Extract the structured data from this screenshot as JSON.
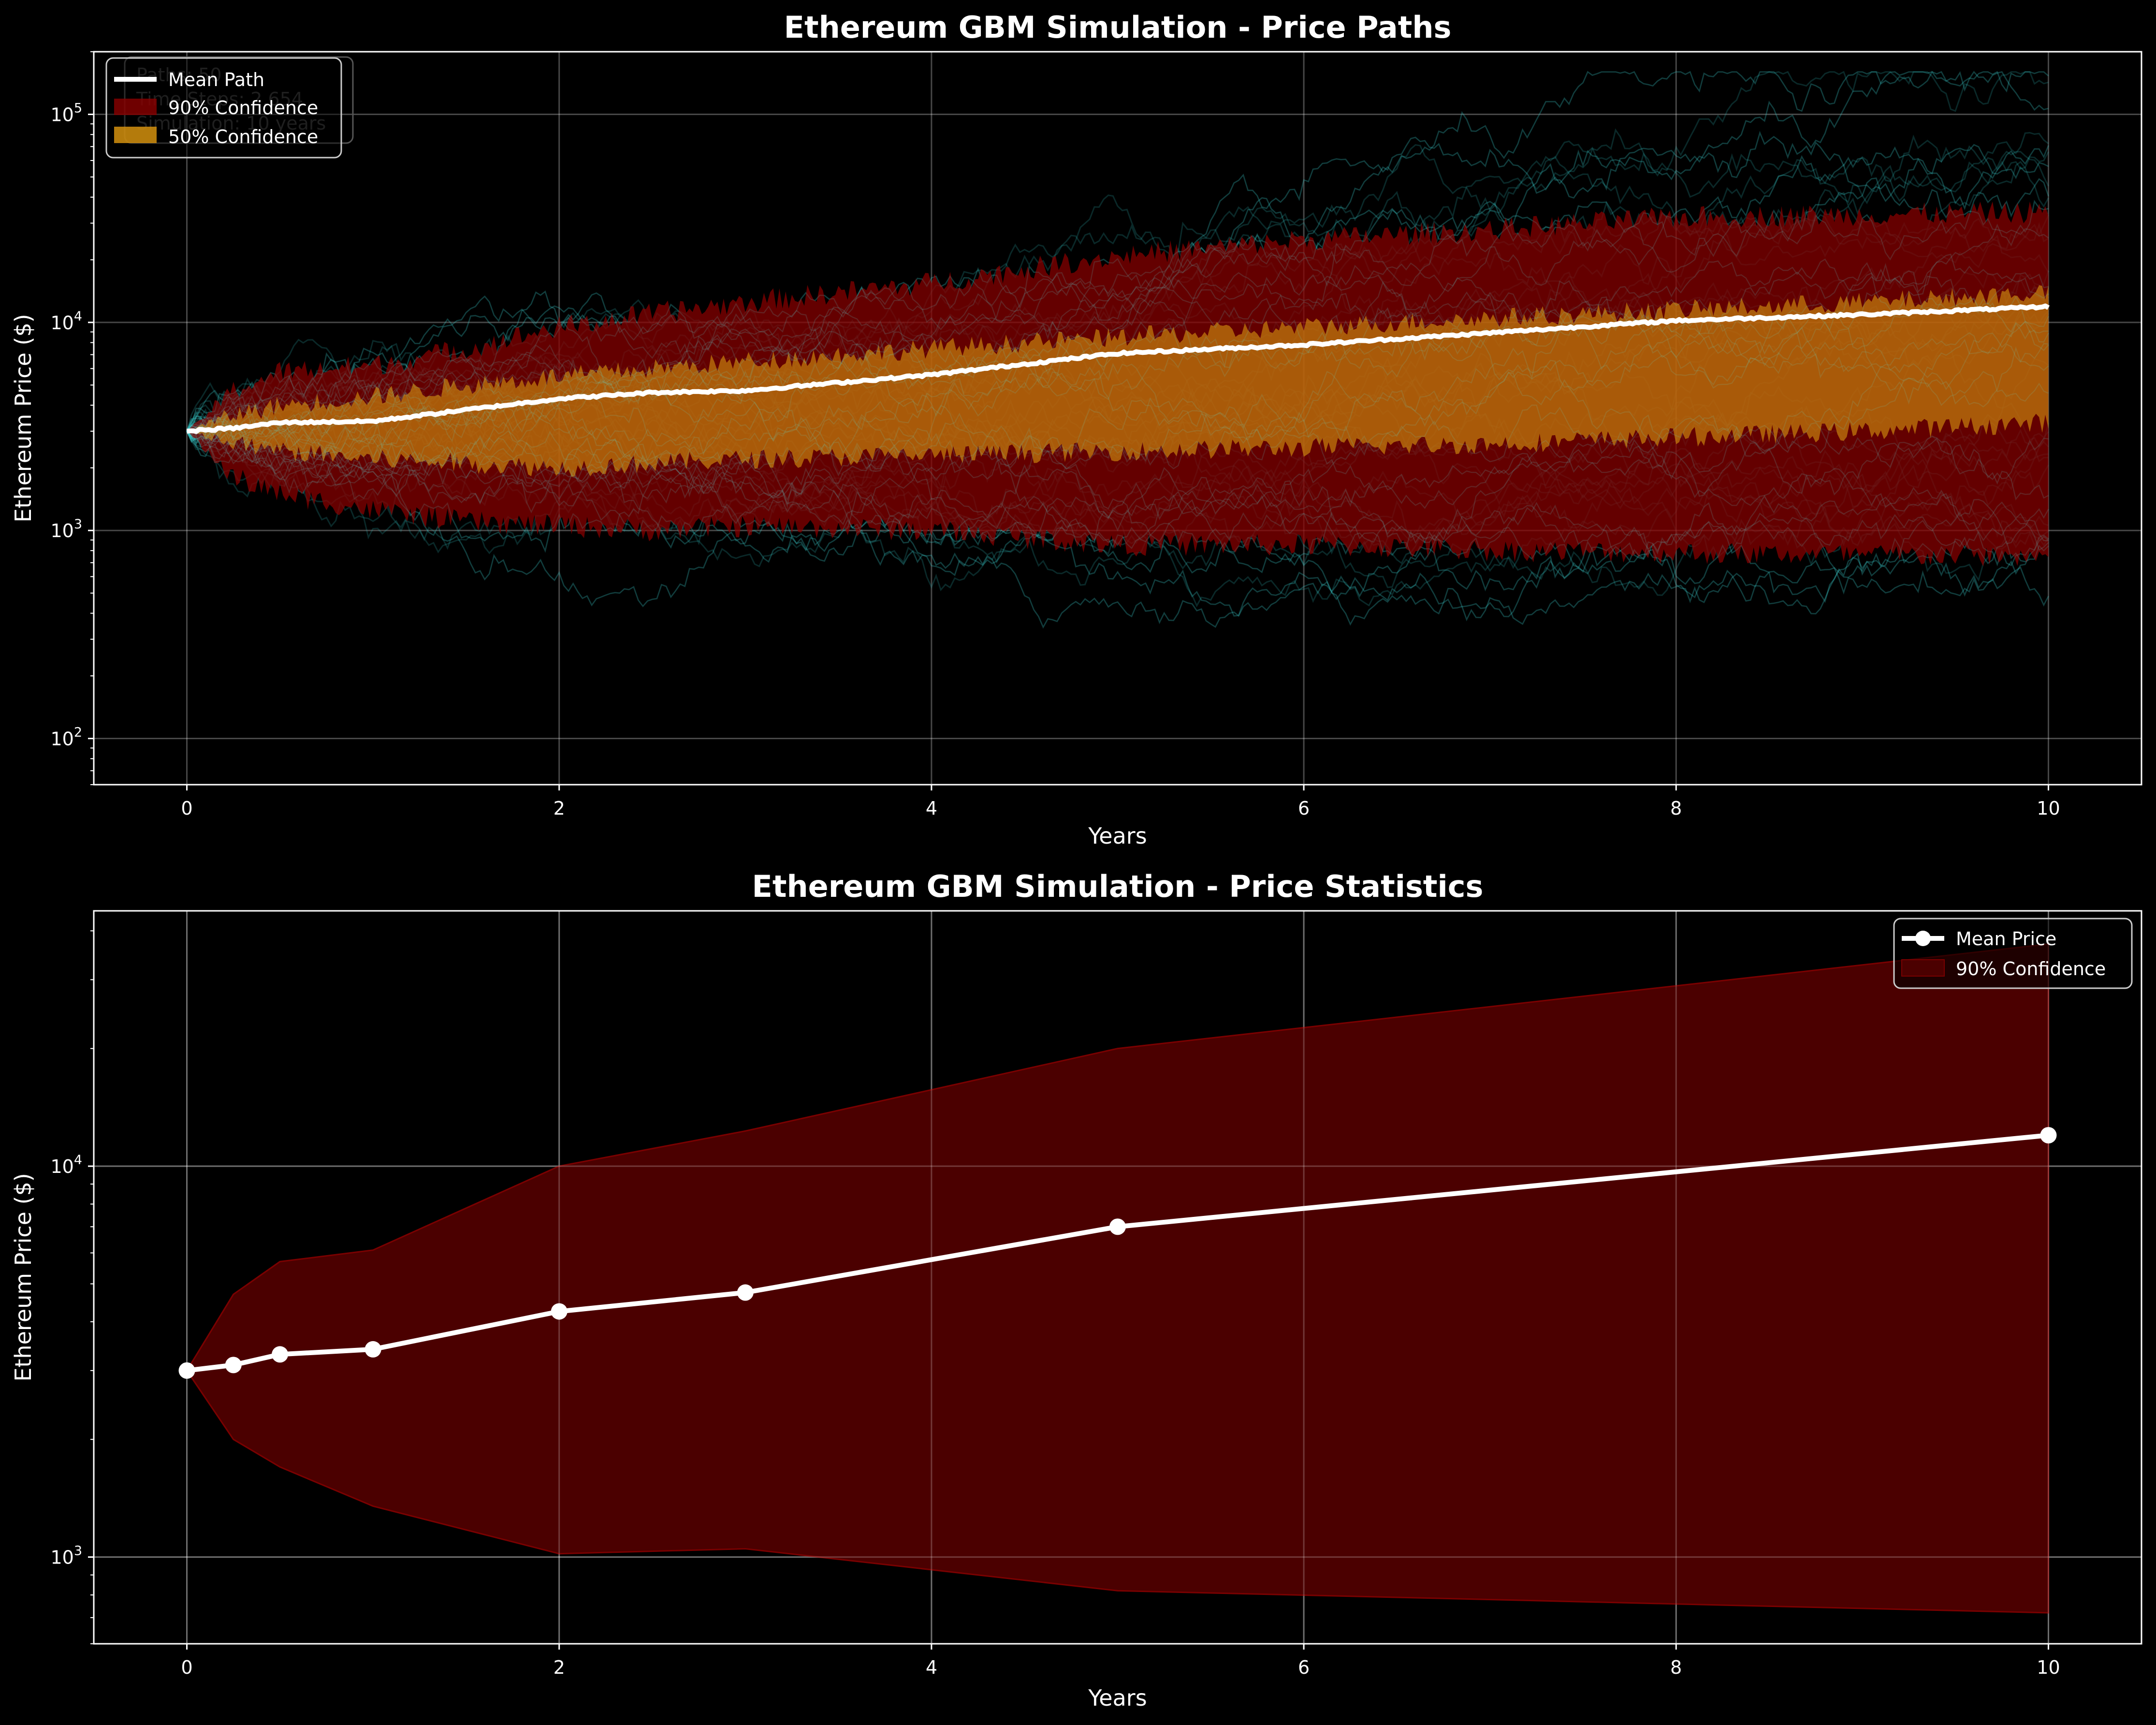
{
  "chart_data": [
    {
      "type": "line",
      "title": "Ethereum GBM Simulation - Price Paths",
      "xlabel": "Years",
      "ylabel": "Ethereum Price ($)",
      "yscale": "log",
      "xlim": [
        -0.5,
        10.5
      ],
      "ylim": [
        60,
        200000
      ],
      "xticks": [
        "0",
        "2",
        "4",
        "6",
        "8",
        "10"
      ],
      "yticks": [
        "10",
        "10",
        "10",
        "10"
      ],
      "ytick_exponents": [
        "2",
        "3",
        "4",
        "5"
      ],
      "grid": true,
      "legend": "top-left",
      "legend_entries": [
        "Mean Path",
        "90% Confidence",
        "50% Confidence"
      ],
      "overlay_text": [
        "Paths: 50",
        "Time Steps: 2,654",
        "Simulation: 10 years"
      ],
      "x": [
        0,
        0.25,
        0.5,
        1,
        1.5,
        2,
        2.5,
        3,
        4,
        5,
        6,
        7,
        8,
        9,
        10
      ],
      "series": [
        {
          "name": "Mean Path",
          "values": [
            3000,
            3100,
            3300,
            3350,
            3800,
            4300,
            4600,
            4700,
            5600,
            7100,
            7800,
            8900,
            10200,
            10900,
            11900
          ]
        },
        {
          "name": "90% Confidence",
          "lower": [
            3000,
            1800,
            1500,
            1250,
            1100,
            1050,
            1000,
            1050,
            1000,
            850,
            850,
            800,
            780,
            760,
            750
          ],
          "upper": [
            3000,
            4700,
            5800,
            6200,
            7500,
            9500,
            11000,
            12500,
            15500,
            21000,
            25000,
            28000,
            32000,
            33000,
            34000
          ]
        },
        {
          "name": "50% Confidence",
          "lower": [
            3000,
            2600,
            2400,
            2200,
            2100,
            2000,
            2100,
            2200,
            2300,
            2400,
            2500,
            2600,
            2800,
            3000,
            3300
          ],
          "upper": [
            3000,
            3600,
            4000,
            4400,
            5000,
            5500,
            6000,
            6500,
            7500,
            8500,
            9500,
            10500,
            11500,
            12500,
            14000
          ]
        }
      ],
      "colors": {
        "mean": "#ffffff",
        "ci90": "#8b0000",
        "ci50": "#d4910e",
        "paths": "#2fb7b7"
      }
    },
    {
      "type": "line",
      "title": "Ethereum GBM Simulation - Price Statistics",
      "xlabel": "Years",
      "ylabel": "Ethereum Price ($)",
      "yscale": "log",
      "xlim": [
        -0.5,
        10.5
      ],
      "ylim": [
        600,
        45000
      ],
      "xticks": [
        "0",
        "2",
        "4",
        "6",
        "8",
        "10"
      ],
      "yticks": [
        "10",
        "10"
      ],
      "ytick_exponents": [
        "3",
        "4"
      ],
      "grid": true,
      "legend": "top-right",
      "legend_entries": [
        "Mean Price",
        "90% Confidence"
      ],
      "x": [
        0,
        0.25,
        0.5,
        1,
        2,
        3,
        5,
        10
      ],
      "series": [
        {
          "name": "Mean Price",
          "values": [
            3000,
            3100,
            3300,
            3400,
            4250,
            4750,
            7000,
            12000
          ]
        },
        {
          "name": "90% Confidence",
          "lower": [
            3000,
            2000,
            1700,
            1350,
            1020,
            1050,
            820,
            720
          ],
          "upper": [
            3000,
            4700,
            5700,
            6100,
            10000,
            12300,
            20000,
            37000
          ]
        }
      ],
      "colors": {
        "mean": "#ffffff",
        "ci90": "#4b0000",
        "ci90_edge": "#7a0000"
      }
    }
  ]
}
